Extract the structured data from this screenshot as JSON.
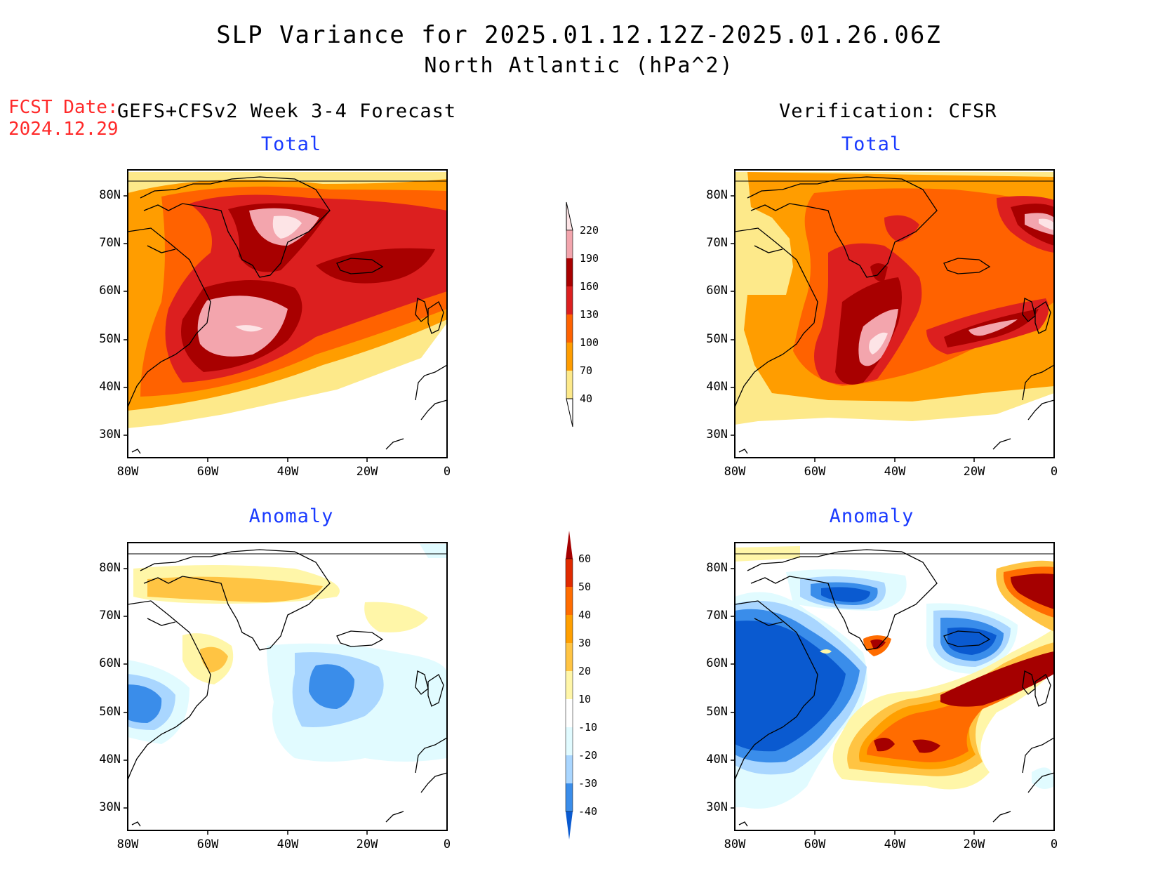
{
  "title": {
    "line1": "SLP Variance for 2025.01.12.12Z-2025.01.26.06Z",
    "line2": "North Atlantic (hPa^2)"
  },
  "forecast_date": {
    "label": "FCST Date:",
    "value": "2024.12.29"
  },
  "columns": {
    "forecast": "GEFS+CFSv2 Week 3-4 Forecast",
    "verification": "Verification: CFSR"
  },
  "panels": {
    "top_left": "Total",
    "top_right": "Total",
    "bottom_left": "Anomaly",
    "bottom_right": "Anomaly"
  },
  "axes": {
    "lat_labels": [
      "80N",
      "70N",
      "60N",
      "50N",
      "40N",
      "30N"
    ],
    "lon_labels": [
      "80W",
      "60W",
      "40W",
      "20W",
      "0"
    ]
  },
  "colorbars": {
    "total": {
      "levels": [
        "220",
        "190",
        "160",
        "130",
        "100",
        "70",
        "40"
      ],
      "colors": [
        "#fde4e6",
        "#f3a5ad",
        "#a80000",
        "#dc1f1f",
        "#ff6200",
        "#ff9d00",
        "#fde98a"
      ]
    },
    "anomaly": {
      "levels": [
        "60",
        "50",
        "40",
        "30",
        "20",
        "10",
        "-10",
        "-20",
        "-30",
        "-40"
      ],
      "colors": [
        "#a50000",
        "#e02a00",
        "#ff6c00",
        "#ff9f00",
        "#ffc443",
        "#fff6a8",
        "#ffffff",
        "#e1fbff",
        "#a9d6ff",
        "#3a8dea",
        "#0a5ad0"
      ]
    }
  },
  "colors": {
    "title_text": "#000000",
    "panel_title": "#1a3bff",
    "forecast_date": "#ff2a2a"
  }
}
